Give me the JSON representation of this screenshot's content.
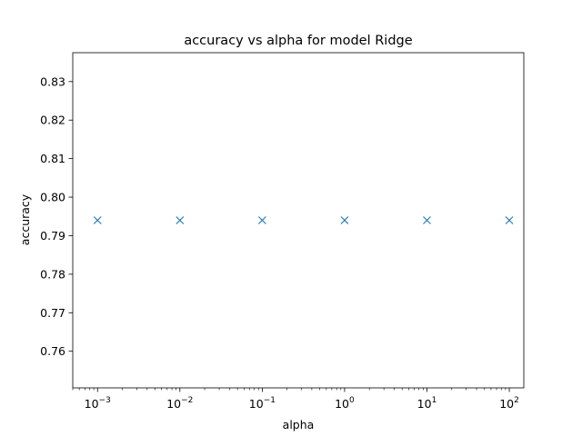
{
  "chart_data": {
    "type": "scatter",
    "title": "accuracy vs alpha for model Ridge",
    "xlabel": "alpha",
    "ylabel": "accuracy",
    "x_scale": "log",
    "x_tick_labels": [
      {
        "base": "10",
        "exp": "−3",
        "value": 0.001
      },
      {
        "base": "10",
        "exp": "−2",
        "value": 0.01
      },
      {
        "base": "10",
        "exp": "−1",
        "value": 0.1
      },
      {
        "base": "10",
        "exp": "0",
        "value": 1
      },
      {
        "base": "10",
        "exp": "1",
        "value": 10
      },
      {
        "base": "10",
        "exp": "2",
        "value": 100
      }
    ],
    "y_ticks": [
      "0.76",
      "0.77",
      "0.78",
      "0.79",
      "0.80",
      "0.81",
      "0.82",
      "0.83"
    ],
    "xlim": [
      0.0005,
      150
    ],
    "ylim": [
      0.7505,
      0.8375
    ],
    "marker": "x",
    "series": [
      {
        "color": "#1f77b4",
        "points": [
          {
            "x": 0.001,
            "y": 0.794
          },
          {
            "x": 0.01,
            "y": 0.794
          },
          {
            "x": 0.1,
            "y": 0.794
          },
          {
            "x": 1,
            "y": 0.794
          },
          {
            "x": 10,
            "y": 0.794
          },
          {
            "x": 100,
            "y": 0.794
          }
        ]
      }
    ],
    "grid": false,
    "legend": "none"
  }
}
